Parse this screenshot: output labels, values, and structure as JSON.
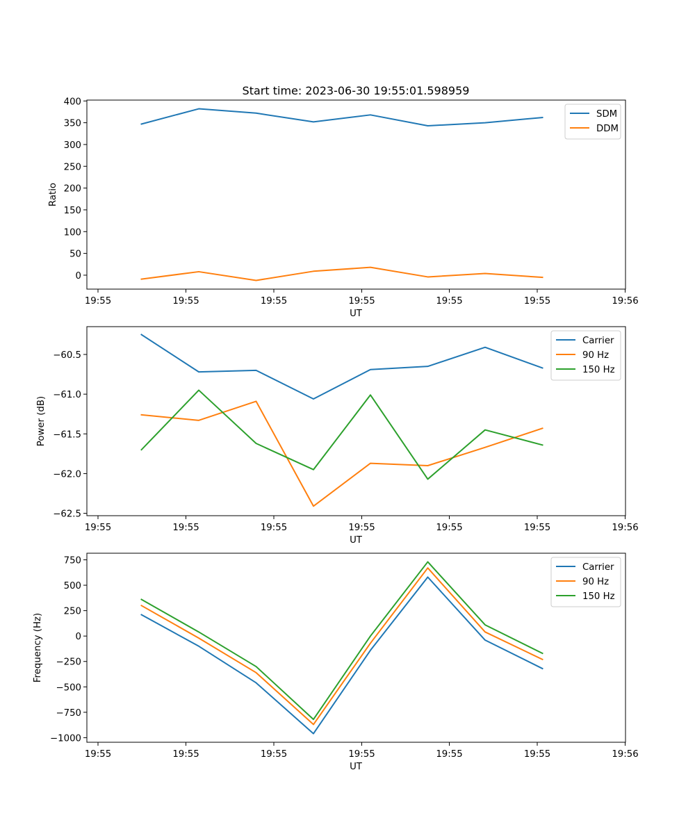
{
  "title": "Start time: 2023-06-30 19:55:01.598959",
  "chart_data": [
    {
      "type": "line",
      "xlabel": "UT",
      "ylabel": "Ratio",
      "x_tick_labels": [
        "19:55",
        "19:55",
        "19:55",
        "19:55",
        "19:55",
        "19:55",
        "19:55",
        "19:56"
      ],
      "y_ticks": [
        0,
        50,
        100,
        150,
        200,
        250,
        300,
        350,
        400
      ],
      "ylim": [
        -32,
        402
      ],
      "legend_position": "top-right",
      "grid": false,
      "series": [
        {
          "name": "SDM",
          "color": "#1f77b4",
          "values": [
            347,
            382,
            372,
            352,
            368,
            343,
            350,
            362
          ]
        },
        {
          "name": "DDM",
          "color": "#ff7f0e",
          "values": [
            -9,
            8,
            -12,
            9,
            18,
            -4,
            4,
            -5
          ]
        }
      ]
    },
    {
      "type": "line",
      "xlabel": "UT",
      "ylabel": "Power (dB)",
      "x_tick_labels": [
        "19:55",
        "19:55",
        "19:55",
        "19:55",
        "19:55",
        "19:55",
        "19:55",
        "19:56"
      ],
      "y_ticks": [
        -60.5,
        -61.0,
        -61.5,
        -62.0,
        -62.5
      ],
      "y_tick_labels": [
        "−60.5",
        "−61.0",
        "−61.5",
        "−62.0",
        "−62.5"
      ],
      "ylim": [
        -62.53,
        -60.15
      ],
      "legend_position": "top-right",
      "grid": false,
      "series": [
        {
          "name": "Carrier",
          "color": "#1f77b4",
          "values": [
            -60.25,
            -60.72,
            -60.7,
            -61.06,
            -60.69,
            -60.65,
            -60.41,
            -60.67
          ]
        },
        {
          "name": "90 Hz",
          "color": "#ff7f0e",
          "values": [
            -61.26,
            -61.33,
            -61.09,
            -62.41,
            -61.87,
            -61.9,
            -61.67,
            -61.43
          ]
        },
        {
          "name": "150 Hz",
          "color": "#2ca02c",
          "values": [
            -61.7,
            -60.95,
            -61.62,
            -61.95,
            -61.01,
            -62.07,
            -61.45,
            -61.64
          ]
        }
      ]
    },
    {
      "type": "line",
      "xlabel": "UT",
      "ylabel": "Frequency (Hz)",
      "x_tick_labels": [
        "19:55",
        "19:55",
        "19:55",
        "19:55",
        "19:55",
        "19:55",
        "19:55",
        "19:56"
      ],
      "y_ticks": [
        750,
        500,
        250,
        0,
        -250,
        -500,
        -750,
        -1000
      ],
      "y_tick_labels": [
        "750",
        "500",
        "250",
        "0",
        "−250",
        "−500",
        "−750",
        "−1000"
      ],
      "ylim": [
        -1045,
        815
      ],
      "legend_position": "top-right",
      "grid": false,
      "series": [
        {
          "name": "Carrier",
          "color": "#1f77b4",
          "values": [
            210,
            -100,
            -460,
            -960,
            -140,
            580,
            -40,
            -320
          ]
        },
        {
          "name": "90 Hz",
          "color": "#ff7f0e",
          "values": [
            300,
            -20,
            -360,
            -870,
            -70,
            670,
            40,
            -230
          ]
        },
        {
          "name": "150 Hz",
          "color": "#2ca02c",
          "values": [
            360,
            40,
            -300,
            -820,
            0,
            730,
            110,
            -170
          ]
        }
      ]
    }
  ]
}
